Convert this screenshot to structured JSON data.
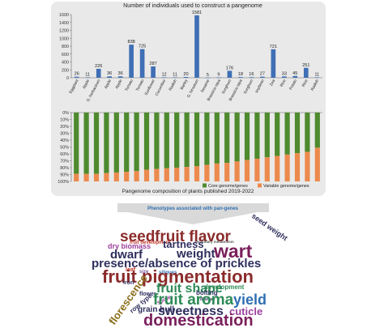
{
  "colors": {
    "bar_blue": "#3f6fb5",
    "core_green": "#4e8a2e",
    "variable_orange": "#ec8a4d",
    "panel_bg": "#e9e9e9",
    "banner_blue": "#2f6fb2"
  },
  "chart_data": [
    {
      "type": "bar",
      "title": "Number of individuals used to construct a pangenome",
      "ylim": [
        0,
        1600
      ],
      "yticks": [
        "0",
        "200",
        "400",
        "600",
        "800",
        "1000",
        "1200",
        "1400",
        "1600"
      ],
      "categories": [
        "Eggplant",
        "Apple",
        "G. herbaceum",
        "Apple",
        "Apple",
        "Tomato",
        "Tomato",
        "Sunflower",
        "Cucumber",
        "Radish",
        "Barley",
        "G. hirsutum",
        "Sesame",
        "Brassica rapa",
        "Sorghum",
        "Brassica rapa",
        "Sorghum",
        "soybean",
        "Zea",
        "Rice",
        "Potato",
        "Rice",
        "Radish"
      ],
      "values": [
        26,
        11,
        226,
        36,
        36,
        838,
        725,
        287,
        12,
        11,
        20,
        1581,
        5,
        9,
        176,
        18,
        16,
        27,
        721,
        33,
        45,
        251,
        11
      ],
      "labels": [
        "26",
        "11",
        "226",
        "36",
        "36",
        "838",
        "725",
        "287",
        "12",
        "11",
        "20",
        "1581",
        "5",
        "9",
        "176",
        "18",
        "16",
        "27",
        "721",
        "33",
        "45",
        "251",
        "11"
      ],
      "grid": false
    },
    {
      "type": "bar",
      "stacked": true,
      "title": "Pangenome composition of plants published 2019-2022",
      "ylim": [
        0,
        100
      ],
      "yticks": [
        "0%",
        "10%",
        "20%",
        "30%",
        "40%",
        "50%",
        "60%",
        "70%",
        "80%",
        "90%",
        "100%"
      ],
      "y_inverted": true,
      "series": [
        {
          "name": "Core genome/genes",
          "values": [
            89,
            89,
            89,
            88,
            87,
            86,
            85,
            83,
            82,
            81,
            80,
            79,
            78,
            76,
            74,
            73,
            71,
            69,
            67,
            65,
            63,
            61,
            59,
            57,
            51
          ]
        },
        {
          "name": "Variable genome/genes",
          "values": [
            11,
            11,
            11,
            12,
            13,
            14,
            15,
            17,
            18,
            19,
            20,
            21,
            22,
            24,
            26,
            27,
            29,
            31,
            33,
            35,
            37,
            39,
            41,
            43,
            49
          ]
        }
      ],
      "legend": "bottom-right",
      "grid": false
    }
  ],
  "banner": {
    "text": "Phenotypes associated with pan-genes"
  },
  "wordcloud": [
    {
      "text": "seed",
      "color": "#8b2b2b"
    },
    {
      "text": "fruit flavor",
      "color": "#8b2b2b"
    },
    {
      "text": "seed weight",
      "color": "#2f2f5e"
    },
    {
      "text": "fruit development",
      "color": "#c0392b"
    },
    {
      "text": "secondary metabolism",
      "color": "#555555"
    },
    {
      "text": "dry biomass",
      "color": "#9b3f9b"
    },
    {
      "text": "tartness",
      "color": "#2f2f5e"
    },
    {
      "text": "dwarf",
      "color": "#2f2f5e"
    },
    {
      "text": "weight",
      "color": "#2f2f5e"
    },
    {
      "text": "wart",
      "color": "#7a1f5c"
    },
    {
      "text": "presence/absence of prickles",
      "color": "#2f2f5e"
    },
    {
      "text": "leaf",
      "color": "#c0392b"
    },
    {
      "text": "size",
      "color": "#7a5aa0"
    },
    {
      "text": "siliques",
      "color": "#2f6fb2"
    },
    {
      "text": "fruit pigmentation",
      "color": "#8b2b2b"
    },
    {
      "text": "iron",
      "color": "#2f2f5e"
    },
    {
      "text": "fruit shape",
      "color": "#2e8b57"
    },
    {
      "text": "development",
      "color": "#2e8b57"
    },
    {
      "text": "bolting",
      "color": "#2f2f5e"
    },
    {
      "text": "flower",
      "color": "#2f2f5e"
    },
    {
      "text": "florescence",
      "color": "#8a6d1a"
    },
    {
      "text": "row type",
      "color": "#2f2f5e"
    },
    {
      "text": "spine",
      "color": "#9b3f9b"
    },
    {
      "text": "disease",
      "color": "#2f2f5e"
    },
    {
      "text": "fruit aroma",
      "color": "#2e8b57"
    },
    {
      "text": "yield",
      "color": "#2f6fb2"
    },
    {
      "text": "grain hull",
      "color": "#2f2f5e"
    },
    {
      "text": "sweetness",
      "color": "#2f2f5e"
    },
    {
      "text": "cuticle",
      "color": "#9b3f9b"
    },
    {
      "text": "domestication",
      "color": "#7a1f5c"
    }
  ]
}
